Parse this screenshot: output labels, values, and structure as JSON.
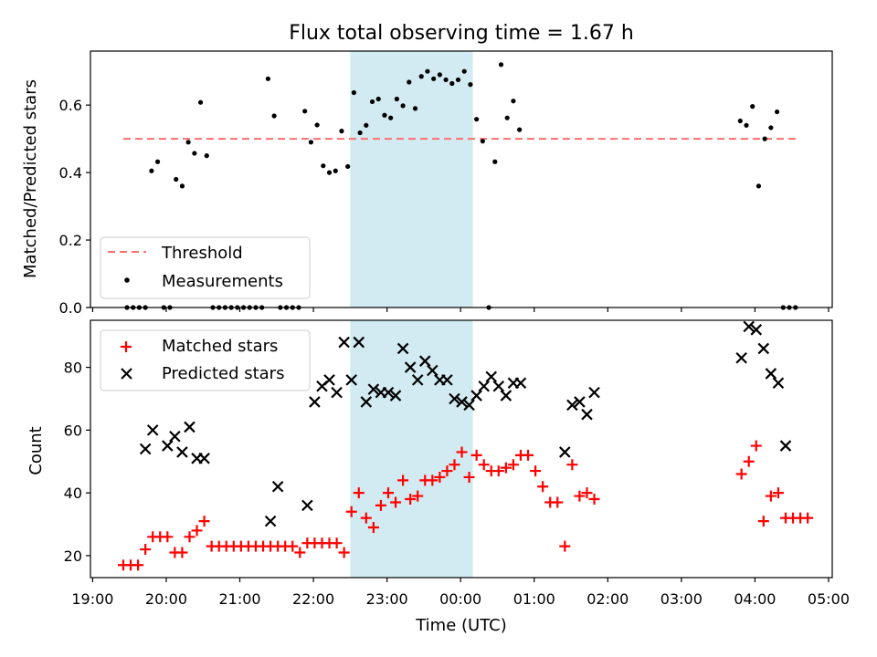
{
  "chart_data": {
    "type": "scatter",
    "title": "Flux total observing time = 1.67 h",
    "xlabel": "Time (UTC)",
    "x_ticks": [
      "19:00",
      "20:00",
      "21:00",
      "22:00",
      "23:00",
      "00:00",
      "01:00",
      "02:00",
      "03:00",
      "04:00",
      "05:00"
    ],
    "highlight_span": {
      "start": "22:30",
      "end": "00:10",
      "color": "#add8e6"
    },
    "panels": [
      {
        "ylabel": "Matched/Predicted stars",
        "ylim": [
          0,
          0.76
        ],
        "y_ticks": [
          "0.0",
          "0.2",
          "0.4",
          "0.6"
        ],
        "legend": {
          "position": "lower-left"
        },
        "threshold": {
          "name": "Threshold",
          "value": 0.5,
          "x_start": "19:25",
          "x_end": "04:35",
          "color": "#ff6e6e"
        },
        "series": [
          {
            "name": "Measurements",
            "color": "#000000",
            "points": [
              [
                "19:28",
                0
              ],
              [
                "19:33",
                0
              ],
              [
                "19:38",
                0
              ],
              [
                "19:43",
                0
              ],
              [
                "19:48",
                0.405
              ],
              [
                "19:53",
                0.432
              ],
              [
                "19:58",
                0
              ],
              [
                "20:03",
                0
              ],
              [
                "20:08",
                0.38
              ],
              [
                "20:13",
                0.36
              ],
              [
                "20:18",
                0.49
              ],
              [
                "20:23",
                0.457
              ],
              [
                "20:28",
                0.608
              ],
              [
                "20:33",
                0.45
              ],
              [
                "20:38",
                0
              ],
              [
                "20:43",
                0
              ],
              [
                "20:48",
                0
              ],
              [
                "20:53",
                0
              ],
              [
                "20:58",
                0
              ],
              [
                "21:03",
                0
              ],
              [
                "21:08",
                0
              ],
              [
                "21:13",
                0
              ],
              [
                "21:18",
                0
              ],
              [
                "21:23",
                0.678
              ],
              [
                "21:28",
                0.568
              ],
              [
                "21:33",
                0
              ],
              [
                "21:38",
                0
              ],
              [
                "21:43",
                0
              ],
              [
                "21:48",
                0
              ],
              [
                "21:53",
                0.582
              ],
              [
                "21:58",
                0.49
              ],
              [
                "22:03",
                0.541
              ],
              [
                "22:08",
                0.42
              ],
              [
                "22:13",
                0.4
              ],
              [
                "22:18",
                0.405
              ],
              [
                "22:23",
                0.523
              ],
              [
                "22:28",
                0.418
              ],
              [
                "22:33",
                0.637
              ],
              [
                "22:38",
                0.518
              ],
              [
                "22:43",
                0.54
              ],
              [
                "22:48",
                0.61
              ],
              [
                "22:53",
                0.618
              ],
              [
                "22:58",
                0.57
              ],
              [
                "23:03",
                0.562
              ],
              [
                "23:08",
                0.618
              ],
              [
                "23:13",
                0.598
              ],
              [
                "23:18",
                0.668
              ],
              [
                "23:23",
                0.59
              ],
              [
                "23:28",
                0.685
              ],
              [
                "23:33",
                0.7
              ],
              [
                "23:38",
                0.678
              ],
              [
                "23:43",
                0.69
              ],
              [
                "23:48",
                0.675
              ],
              [
                "23:53",
                0.664
              ],
              [
                "23:58",
                0.675
              ],
              [
                "00:03",
                0.7
              ],
              [
                "00:08",
                0.661
              ],
              [
                "00:13",
                0.558
              ],
              [
                "00:18",
                0.493
              ],
              [
                "00:23",
                0
              ],
              [
                "00:28",
                0.432
              ],
              [
                "00:33",
                0.72
              ],
              [
                "00:38",
                0.562
              ],
              [
                "00:43",
                0.612
              ],
              [
                "00:48",
                0.527
              ],
              [
                "03:48",
                0.553
              ],
              [
                "03:53",
                0.54
              ],
              [
                "03:58",
                0.596
              ],
              [
                "04:03",
                0.36
              ],
              [
                "04:08",
                0.5
              ],
              [
                "04:13",
                0.533
              ],
              [
                "04:18",
                0.58
              ],
              [
                "04:23",
                0
              ],
              [
                "04:28",
                0
              ],
              [
                "04:33",
                0
              ]
            ]
          }
        ]
      },
      {
        "ylabel": "Count",
        "ylim": [
          13,
          95
        ],
        "y_ticks": [
          "20",
          "40",
          "60",
          "80"
        ],
        "legend": {
          "position": "upper-left"
        },
        "series": [
          {
            "name": "Matched stars",
            "color": "#ff0000",
            "marker": "+",
            "points": [
              [
                "19:25",
                17
              ],
              [
                "19:31",
                17
              ],
              [
                "19:37",
                17
              ],
              [
                "19:43",
                22
              ],
              [
                "19:49",
                26
              ],
              [
                "19:55",
                26
              ],
              [
                "20:01",
                26
              ],
              [
                "20:07",
                21
              ],
              [
                "20:13",
                21
              ],
              [
                "20:19",
                26
              ],
              [
                "20:25",
                28
              ],
              [
                "20:31",
                31
              ],
              [
                "20:37",
                23
              ],
              [
                "20:43",
                23
              ],
              [
                "20:49",
                23
              ],
              [
                "20:55",
                23
              ],
              [
                "21:01",
                23
              ],
              [
                "21:07",
                23
              ],
              [
                "21:13",
                23
              ],
              [
                "21:19",
                23
              ],
              [
                "21:25",
                23
              ],
              [
                "21:31",
                23
              ],
              [
                "21:37",
                23
              ],
              [
                "21:43",
                23
              ],
              [
                "21:49",
                21
              ],
              [
                "21:55",
                24
              ],
              [
                "22:01",
                24
              ],
              [
                "22:07",
                24
              ],
              [
                "22:13",
                24
              ],
              [
                "22:19",
                24
              ],
              [
                "22:25",
                21
              ],
              [
                "22:31",
                34
              ],
              [
                "22:37",
                40
              ],
              [
                "22:43",
                32
              ],
              [
                "22:49",
                29
              ],
              [
                "22:55",
                36
              ],
              [
                "23:01",
                40
              ],
              [
                "23:07",
                37
              ],
              [
                "23:13",
                44
              ],
              [
                "23:19",
                38
              ],
              [
                "23:25",
                39
              ],
              [
                "23:31",
                44
              ],
              [
                "23:37",
                44
              ],
              [
                "23:43",
                45
              ],
              [
                "23:49",
                47
              ],
              [
                "23:55",
                49
              ],
              [
                "00:01",
                53
              ],
              [
                "00:07",
                45
              ],
              [
                "00:13",
                52
              ],
              [
                "00:19",
                49
              ],
              [
                "00:25",
                47
              ],
              [
                "00:31",
                47
              ],
              [
                "00:37",
                48
              ],
              [
                "00:43",
                49
              ],
              [
                "00:49",
                52
              ],
              [
                "00:55",
                52
              ],
              [
                "01:01",
                47
              ],
              [
                "01:07",
                42
              ],
              [
                "01:13",
                37
              ],
              [
                "01:19",
                37
              ],
              [
                "01:25",
                23
              ],
              [
                "01:31",
                49
              ],
              [
                "01:37",
                39
              ],
              [
                "01:43",
                40
              ],
              [
                "01:49",
                38
              ],
              [
                "03:49",
                46
              ],
              [
                "03:55",
                50
              ],
              [
                "04:01",
                55
              ],
              [
                "04:07",
                31
              ],
              [
                "04:13",
                39
              ],
              [
                "04:19",
                40
              ],
              [
                "04:25",
                32
              ],
              [
                "04:31",
                32
              ],
              [
                "04:37",
                32
              ],
              [
                "04:43",
                32
              ]
            ]
          },
          {
            "name": "Predicted stars",
            "color": "#000000",
            "marker": "x",
            "points": [
              [
                "19:43",
                54
              ],
              [
                "19:49",
                60
              ],
              [
                "20:01",
                55
              ],
              [
                "20:07",
                58
              ],
              [
                "20:13",
                53
              ],
              [
                "20:19",
                61
              ],
              [
                "20:25",
                51
              ],
              [
                "20:31",
                51
              ],
              [
                "21:25",
                31
              ],
              [
                "21:31",
                42
              ],
              [
                "21:55",
                36
              ],
              [
                "22:01",
                69
              ],
              [
                "22:07",
                74
              ],
              [
                "22:13",
                76
              ],
              [
                "22:19",
                72
              ],
              [
                "22:25",
                88
              ],
              [
                "22:31",
                76
              ],
              [
                "22:37",
                88
              ],
              [
                "22:43",
                69
              ],
              [
                "22:49",
                73
              ],
              [
                "22:55",
                72
              ],
              [
                "23:01",
                72
              ],
              [
                "23:07",
                71
              ],
              [
                "23:13",
                86
              ],
              [
                "23:19",
                80
              ],
              [
                "23:25",
                76
              ],
              [
                "23:31",
                82
              ],
              [
                "23:37",
                79
              ],
              [
                "23:43",
                76
              ],
              [
                "23:49",
                76
              ],
              [
                "23:55",
                70
              ],
              [
                "00:01",
                69
              ],
              [
                "00:07",
                68
              ],
              [
                "00:13",
                71
              ],
              [
                "00:19",
                74
              ],
              [
                "00:25",
                77
              ],
              [
                "00:31",
                74
              ],
              [
                "00:37",
                71
              ],
              [
                "00:43",
                75
              ],
              [
                "00:49",
                75
              ],
              [
                "01:25",
                53
              ],
              [
                "01:31",
                68
              ],
              [
                "01:37",
                69
              ],
              [
                "01:43",
                65
              ],
              [
                "01:49",
                72
              ],
              [
                "03:49",
                83
              ],
              [
                "03:55",
                93
              ],
              [
                "04:01",
                92
              ],
              [
                "04:07",
                86
              ],
              [
                "04:13",
                78
              ],
              [
                "04:19",
                75
              ],
              [
                "04:25",
                55
              ]
            ]
          }
        ]
      }
    ]
  }
}
